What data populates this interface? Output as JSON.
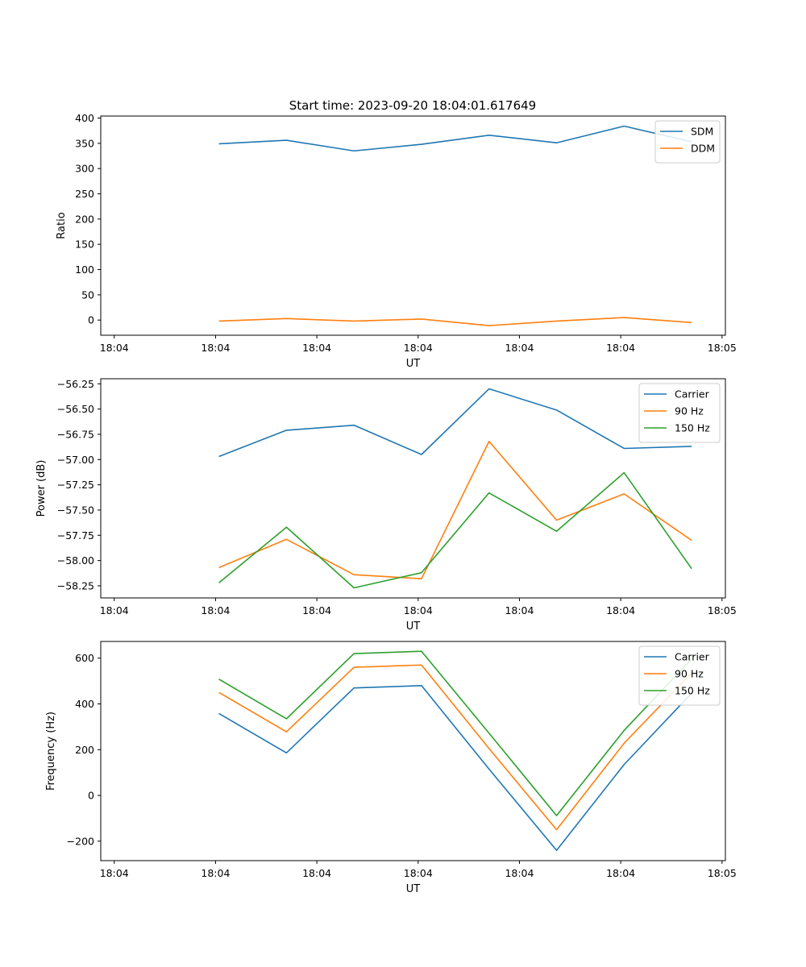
{
  "figure": {
    "title": "Start time: 2023-09-20 18:04:01.617649"
  },
  "colors": {
    "blue": "#1f77b4",
    "orange": "#ff7f0e",
    "green": "#2ca02c"
  },
  "chart_data": [
    {
      "type": "line",
      "title": "Start time: 2023-09-20 18:04:01.617649",
      "xlabel": "UT",
      "ylabel": "Ratio",
      "x": [
        1,
        2,
        3,
        4,
        5,
        6,
        7,
        8
      ],
      "xlim": [
        -0.75,
        8.5
      ],
      "xticks": [
        -0.55,
        0.95,
        2.45,
        3.95,
        5.45,
        6.95,
        8.45
      ],
      "xtick_labels": [
        "18:04",
        "18:04",
        "18:04",
        "18:04",
        "18:04",
        "18:04",
        "18:05"
      ],
      "ylim": [
        -30,
        404
      ],
      "yticks": [
        0,
        50,
        100,
        150,
        200,
        250,
        300,
        350,
        400
      ],
      "ytick_labels": [
        "0",
        "50",
        "100",
        "150",
        "200",
        "250",
        "300",
        "350",
        "400"
      ],
      "legend": "top-right",
      "series": [
        {
          "name": "SDM",
          "color": "#1f77b4",
          "values": [
            349,
            356,
            335,
            348,
            366,
            351,
            384,
            353
          ]
        },
        {
          "name": "DDM",
          "color": "#ff7f0e",
          "values": [
            -2,
            3,
            -2,
            2,
            -11,
            -2,
            5,
            -5
          ]
        }
      ]
    },
    {
      "type": "line",
      "title": "",
      "xlabel": "UT",
      "ylabel": "Power (dB)",
      "x": [
        1,
        2,
        3,
        4,
        5,
        6,
        7,
        8
      ],
      "xlim": [
        -0.75,
        8.5
      ],
      "xticks": [
        -0.55,
        0.95,
        2.45,
        3.95,
        5.45,
        6.95,
        8.45
      ],
      "xtick_labels": [
        "18:04",
        "18:04",
        "18:04",
        "18:04",
        "18:04",
        "18:04",
        "18:05"
      ],
      "ylim": [
        -58.37,
        -56.2
      ],
      "yticks": [
        -58.25,
        -58.0,
        -57.75,
        -57.5,
        -57.25,
        -57.0,
        -56.75,
        -56.5,
        -56.25
      ],
      "ytick_labels": [
        "−58.25",
        "−58.00",
        "−57.75",
        "−57.50",
        "−57.25",
        "−57.00",
        "−56.75",
        "−56.50",
        "−56.25"
      ],
      "legend": "top-right",
      "series": [
        {
          "name": "Carrier",
          "color": "#1f77b4",
          "values": [
            -56.97,
            -56.71,
            -56.66,
            -56.95,
            -56.3,
            -56.51,
            -56.89,
            -56.87
          ]
        },
        {
          "name": "90 Hz",
          "color": "#ff7f0e",
          "values": [
            -58.07,
            -57.79,
            -58.14,
            -58.18,
            -56.82,
            -57.6,
            -57.34,
            -57.8
          ]
        },
        {
          "name": "150 Hz",
          "color": "#2ca02c",
          "values": [
            -58.22,
            -57.67,
            -58.27,
            -58.12,
            -57.33,
            -57.71,
            -57.13,
            -58.08
          ]
        }
      ]
    },
    {
      "type": "line",
      "title": "",
      "xlabel": "UT",
      "ylabel": "Frequency (Hz)",
      "x": [
        1,
        2,
        3,
        4,
        5,
        6,
        7,
        8
      ],
      "xlim": [
        -0.75,
        8.5
      ],
      "xticks": [
        -0.55,
        0.95,
        2.45,
        3.95,
        5.45,
        6.95,
        8.45
      ],
      "xtick_labels": [
        "18:04",
        "18:04",
        "18:04",
        "18:04",
        "18:04",
        "18:04",
        "18:05"
      ],
      "ylim": [
        -285,
        673
      ],
      "yticks": [
        -200,
        0,
        200,
        400,
        600
      ],
      "ytick_labels": [
        "−200",
        "0",
        "200",
        "400",
        "600"
      ],
      "legend": "top-right",
      "series": [
        {
          "name": "Carrier",
          "color": "#1f77b4",
          "values": [
            358,
            186,
            470,
            480,
            115,
            -240,
            135,
            447
          ]
        },
        {
          "name": "90 Hz",
          "color": "#ff7f0e",
          "values": [
            450,
            278,
            560,
            570,
            205,
            -150,
            228,
            535
          ]
        },
        {
          "name": "150 Hz",
          "color": "#2ca02c",
          "values": [
            508,
            335,
            620,
            630,
            272,
            -88,
            284,
            597
          ]
        }
      ]
    }
  ]
}
